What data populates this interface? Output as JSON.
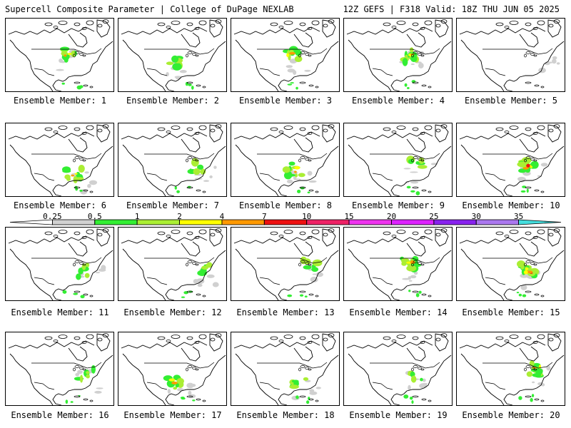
{
  "header": {
    "left_title": "Supercell Composite Parameter | College of DuPage NEXLAB",
    "right_title": "12Z GEFS | F318 Valid: 18Z THU JUN 05 2025"
  },
  "colorbar": {
    "ticks": [
      "0.25",
      "0.5",
      "1",
      "2",
      "4",
      "7",
      "10",
      "15",
      "20",
      "25",
      "30",
      "35"
    ],
    "colors": [
      "#ffffff",
      "#d0d0d0",
      "#33ee33",
      "#aaee33",
      "#ffff00",
      "#ff9900",
      "#ee1111",
      "#ee2266",
      "#ee33ee",
      "#dd22ff",
      "#8822ee",
      "#aa77ee",
      "#44dddd"
    ]
  },
  "land_style": {
    "border_color": "#000000",
    "coast_color": "#000000"
  },
  "members": [
    {
      "label": "Ensemble Member: 1",
      "intensity": "moderate",
      "focus": "northern-plains"
    },
    {
      "label": "Ensemble Member: 2",
      "intensity": "weak",
      "focus": "central-plains"
    },
    {
      "label": "Ensemble Member: 3",
      "intensity": "moderate",
      "focus": "upper-midwest"
    },
    {
      "label": "Ensemble Member: 4",
      "intensity": "moderate",
      "focus": "great-lakes"
    },
    {
      "label": "Ensemble Member: 5",
      "intensity": "none",
      "focus": "east-coast"
    },
    {
      "label": "Ensemble Member: 6",
      "intensity": "moderate",
      "focus": "southeast"
    },
    {
      "label": "Ensemble Member: 7",
      "intensity": "weak",
      "focus": "mid-atlantic"
    },
    {
      "label": "Ensemble Member: 8",
      "intensity": "moderate",
      "focus": "mississippi-valley"
    },
    {
      "label": "Ensemble Member: 9",
      "intensity": "weak",
      "focus": "ohio-valley"
    },
    {
      "label": "Ensemble Member: 10",
      "intensity": "strong",
      "focus": "ohio-valley"
    },
    {
      "label": "Ensemble Member: 11",
      "intensity": "weak",
      "focus": "mid-atlantic"
    },
    {
      "label": "Ensemble Member: 12",
      "intensity": "weak",
      "focus": "east-coast"
    },
    {
      "label": "Ensemble Member: 13",
      "intensity": "weak",
      "focus": "northeast"
    },
    {
      "label": "Ensemble Member: 14",
      "intensity": "moderate",
      "focus": "great-lakes"
    },
    {
      "label": "Ensemble Member: 15",
      "intensity": "strong",
      "focus": "ohio-valley"
    },
    {
      "label": "Ensemble Member: 16",
      "intensity": "weak",
      "focus": "mid-atlantic"
    },
    {
      "label": "Ensemble Member: 17",
      "intensity": "moderate",
      "focus": "southern-plains"
    },
    {
      "label": "Ensemble Member: 18",
      "intensity": "weak",
      "focus": "southeast"
    },
    {
      "label": "Ensemble Member: 19",
      "intensity": "weak",
      "focus": "ohio-valley"
    },
    {
      "label": "Ensemble Member: 20",
      "intensity": "moderate",
      "focus": "northeast"
    }
  ]
}
